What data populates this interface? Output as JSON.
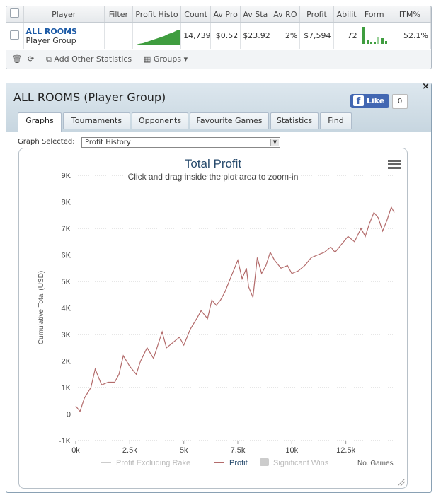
{
  "stats_table": {
    "headers": [
      "",
      "Player",
      "Filter",
      "Profit Histo",
      "Count",
      "Av Pro",
      "Av Sta",
      "Av RO",
      "Profit",
      "Abilit",
      "Form",
      "ITM%"
    ],
    "row": {
      "player_name": "ALL ROOMS",
      "player_group": "Player Group",
      "filter": "",
      "count": "14,739",
      "av_profit": "$0.52",
      "av_stake": "$23.92",
      "av_roi": "2%",
      "profit": "$7,594",
      "ability": "72",
      "itm": "52.1%"
    },
    "toolbar": {
      "add_stats": "Add Other Statistics",
      "groups": "Groups"
    }
  },
  "window": {
    "title": "ALL ROOMS (Player Group)",
    "fb_like": "Like",
    "fb_count": "0",
    "close": "×",
    "tabs": [
      "Graphs",
      "Tournaments",
      "Opponents",
      "Favourite Games",
      "Statistics",
      "Find"
    ],
    "active_tab": "Graphs",
    "graph_selected_label": "Graph Selected:",
    "graph_selected_value": "Profit History"
  },
  "colors": {
    "profit_line": "#b36b6b",
    "sparkline": "#3f9d3f",
    "link": "#1c5aa6"
  },
  "chart_data": {
    "type": "line",
    "title": "Total Profit",
    "subtitle": "Click and drag inside the plot area to zoom-in",
    "xlabel": "No. Games",
    "ylabel": "Cumulative Total (USD)",
    "xlim": [
      0,
      14739
    ],
    "ylim": [
      -1000,
      9000
    ],
    "x_ticks": [
      "0k",
      "2.5k",
      "5k",
      "7.5k",
      "10k",
      "12.5k"
    ],
    "x_tick_values": [
      0,
      2500,
      5000,
      7500,
      10000,
      12500
    ],
    "y_ticks": [
      "-1K",
      "0",
      "1K",
      "2K",
      "3K",
      "4K",
      "5K",
      "6K",
      "7K",
      "8K",
      "9K"
    ],
    "y_tick_values": [
      -1000,
      0,
      1000,
      2000,
      3000,
      4000,
      5000,
      6000,
      7000,
      8000,
      9000
    ],
    "grid": true,
    "legend": [
      "Profit Excluding Rake",
      "Profit",
      "Significant Wins"
    ],
    "series": [
      {
        "name": "Profit",
        "x": [
          0,
          200,
          400,
          700,
          900,
          1000,
          1200,
          1500,
          1800,
          2000,
          2200,
          2500,
          2800,
          3000,
          3300,
          3600,
          3800,
          4000,
          4200,
          4500,
          4800,
          5000,
          5300,
          5600,
          5800,
          6100,
          6300,
          6500,
          6700,
          6900,
          7200,
          7500,
          7700,
          7900,
          8000,
          8200,
          8400,
          8600,
          8800,
          9000,
          9200,
          9500,
          9800,
          10000,
          10300,
          10600,
          10900,
          11200,
          11500,
          11800,
          12000,
          12300,
          12600,
          12900,
          13200,
          13400,
          13600,
          13800,
          14000,
          14200,
          14400,
          14600,
          14739
        ],
        "values": [
          300,
          100,
          600,
          1000,
          1700,
          1500,
          1100,
          1200,
          1200,
          1500,
          2200,
          1800,
          1500,
          2000,
          2500,
          2100,
          2600,
          3100,
          2500,
          2700,
          2900,
          2600,
          3200,
          3600,
          3900,
          3600,
          4300,
          4100,
          4300,
          4600,
          5200,
          5800,
          5100,
          5500,
          4800,
          4400,
          5900,
          5300,
          5600,
          6100,
          5800,
          5500,
          5600,
          5300,
          5400,
          5600,
          5900,
          6000,
          6100,
          6300,
          6100,
          6400,
          6700,
          6500,
          7000,
          6700,
          7200,
          7600,
          7400,
          6900,
          7300,
          7800,
          7600
        ]
      }
    ]
  }
}
